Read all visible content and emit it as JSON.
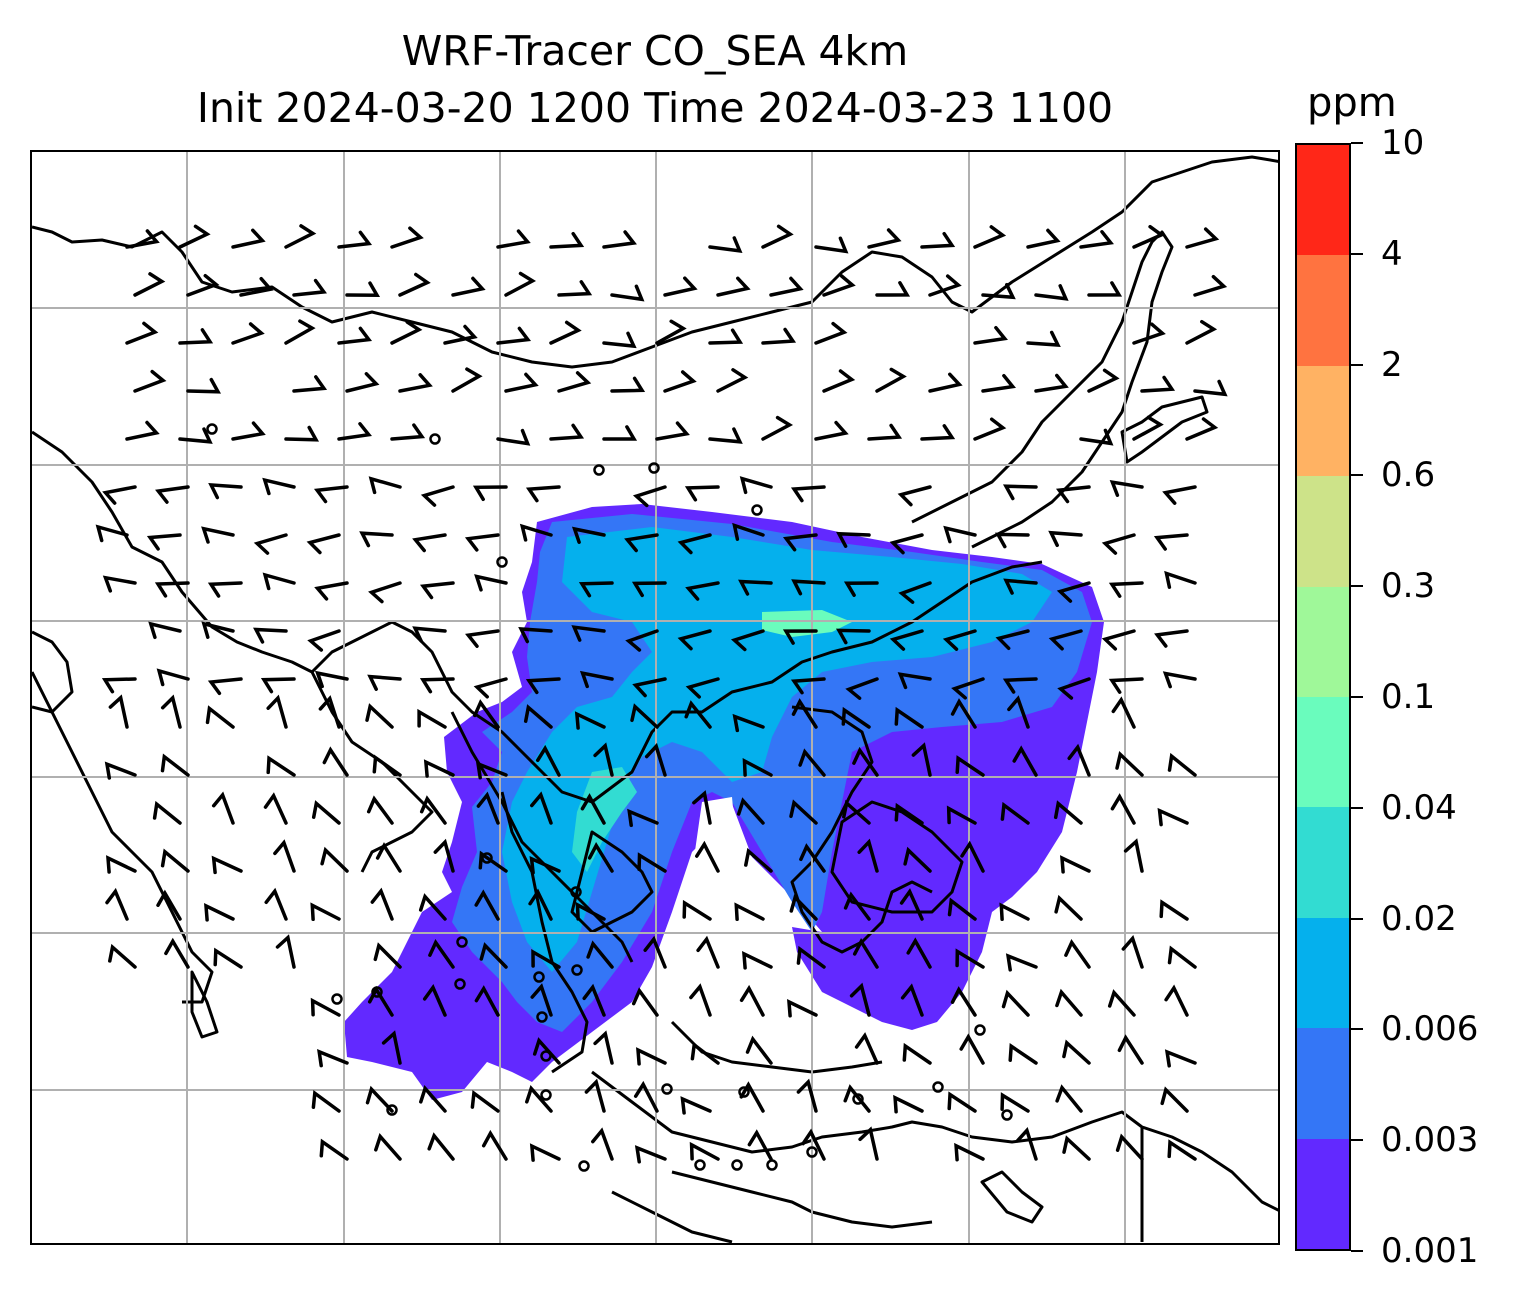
{
  "title": {
    "line1": "WRF-Tracer CO_SEA 4km",
    "line2": "Init 2024-03-20 1200 Time 2024-03-23 1100"
  },
  "colorbar": {
    "unit_label": "ppm",
    "levels": [
      "10",
      "4",
      "2",
      "0.6",
      "0.3",
      "0.1",
      "0.04",
      "0.02",
      "0.006",
      "0.003",
      "0.001"
    ],
    "colors": [
      "#6229ff",
      "#3476f6",
      "#05b0ed",
      "#32dcd2",
      "#6afcbd",
      "#9ff899",
      "#cde389",
      "#ffb263",
      "#ff7340",
      "#ff2718"
    ]
  },
  "map": {
    "projection": "lat-lon",
    "gridlines": true,
    "gridline_color": "#b0b0b0",
    "coastline_color": "#000000",
    "overlay": "wind-barbs",
    "station_markers": "calm-wind-circles"
  }
}
